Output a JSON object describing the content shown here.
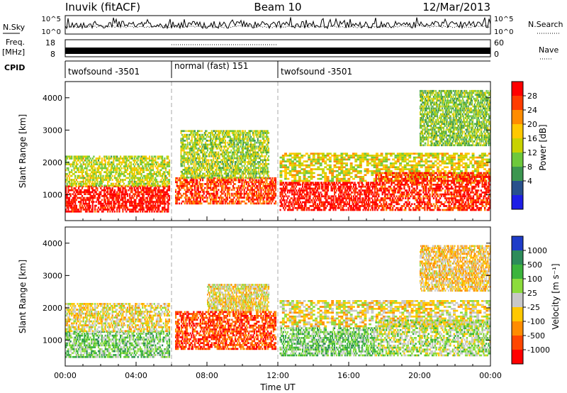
{
  "header": {
    "site": "Inuvik (fitACF)",
    "beam": "Beam 10",
    "date": "12/Mar/2013"
  },
  "noise_panel": {
    "left_label": "N.Sky",
    "left_top_tick": "10^5",
    "left_bottom_tick": "10^0",
    "right_label": "N.Search",
    "right_top_tick": "10^5",
    "right_bottom_tick": "10^0"
  },
  "freq_panel": {
    "left_label_line1": "Freq.",
    "left_label_line2": "[MHz]",
    "left_ticks": [
      "18",
      "8"
    ],
    "right_label": "Nave",
    "right_ticks": [
      "60",
      "0"
    ]
  },
  "cpid_panel": {
    "label": "CPID",
    "segments": [
      {
        "start": "00:00",
        "end": "06:00",
        "text": "twofsound -3501"
      },
      {
        "start": "06:00",
        "end": "12:00",
        "text": "normal (fast) 151"
      },
      {
        "start": "12:00",
        "end": "24:00",
        "text": "twofsound -3501"
      }
    ]
  },
  "chart_data": [
    {
      "type": "heatmap",
      "name": "power",
      "ylabel": "Slant Range [km]",
      "ylim": [
        200,
        4500
      ],
      "yticks": [
        "1000",
        "2000",
        "3000",
        "4000"
      ],
      "xlim_hours": [
        0,
        24
      ],
      "colorbar": {
        "label": "Power [dB]",
        "ticks": [
          "28",
          "24",
          "20",
          "16",
          "12",
          "8",
          "4"
        ],
        "colors": [
          "#ff0000",
          "#ff3c00",
          "#ff8c00",
          "#ffc800",
          "#c8d200",
          "#6ec83c",
          "#3c9650",
          "#28508c",
          "#1e1ee6"
        ]
      },
      "bands": [
        {
          "x": [
            0,
            5.9
          ],
          "y": [
            450,
            1250
          ],
          "level": 0.95
        },
        {
          "x": [
            0,
            5.9
          ],
          "y": [
            1250,
            2200
          ],
          "level": 0.5
        },
        {
          "x": [
            6.2,
            11.9
          ],
          "y": [
            700,
            1500
          ],
          "level": 0.85
        },
        {
          "x": [
            6.5,
            11.5
          ],
          "y": [
            1500,
            3000
          ],
          "level": 0.45
        },
        {
          "x": [
            12.1,
            17.5
          ],
          "y": [
            500,
            1400
          ],
          "level": 0.95
        },
        {
          "x": [
            12.1,
            24
          ],
          "y": [
            1400,
            2300
          ],
          "level": 0.55
        },
        {
          "x": [
            17.5,
            24
          ],
          "y": [
            500,
            1700
          ],
          "level": 0.9
        },
        {
          "x": [
            20,
            24
          ],
          "y": [
            2500,
            4200
          ],
          "level": 0.4
        }
      ]
    },
    {
      "type": "heatmap",
      "name": "velocity",
      "ylabel": "Slant Range [km]",
      "ylim": [
        200,
        4500
      ],
      "yticks": [
        "1000",
        "2000",
        "3000",
        "4000"
      ],
      "xlim_hours": [
        0,
        24
      ],
      "xticks": [
        "00:00",
        "04:00",
        "08:00",
        "12:00",
        "16:00",
        "20:00",
        "00:00"
      ],
      "xlabel": "Time UT",
      "colorbar": {
        "label": "Velocity [m s⁻¹]",
        "ticks": [
          "1000",
          "500",
          "100",
          "25",
          "-25",
          "-100",
          "-500",
          "-1000"
        ],
        "colors": [
          "#1e3cc8",
          "#2d8c5a",
          "#3cb43c",
          "#8cdc3c",
          "#c8c8c8",
          "#ffc800",
          "#ff8c00",
          "#ff4600",
          "#ff0000"
        ]
      },
      "bands": [
        {
          "x": [
            0,
            5.9
          ],
          "y": [
            450,
            1250
          ],
          "level": 0.65
        },
        {
          "x": [
            0,
            5.9
          ],
          "y": [
            1250,
            2100
          ],
          "level": 0.45
        },
        {
          "x": [
            6.2,
            11.9
          ],
          "y": [
            700,
            1900
          ],
          "level": 0.15
        },
        {
          "x": [
            8,
            11.5
          ],
          "y": [
            1900,
            2700
          ],
          "level": 0.45
        },
        {
          "x": [
            12.1,
            17.5
          ],
          "y": [
            500,
            1400
          ],
          "level": 0.65
        },
        {
          "x": [
            12.1,
            24
          ],
          "y": [
            1400,
            2200
          ],
          "level": 0.45
        },
        {
          "x": [
            17.5,
            24
          ],
          "y": [
            500,
            1600
          ],
          "level": 0.55
        },
        {
          "x": [
            20,
            24
          ],
          "y": [
            2500,
            3900
          ],
          "level": 0.4
        }
      ]
    }
  ]
}
